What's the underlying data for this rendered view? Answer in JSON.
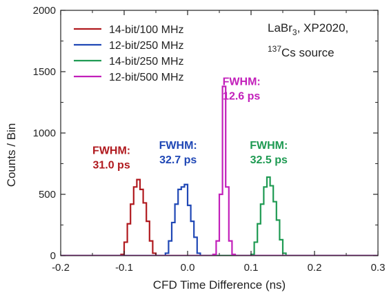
{
  "chart_data": {
    "type": "line",
    "title": "",
    "xlabel": "CFD Time Difference (ns)",
    "ylabel": "Counts / Bin",
    "xlim": [
      -0.2,
      0.3
    ],
    "ylim": [
      0,
      2000
    ],
    "x_ticks": [
      "-0.2",
      "-0.1",
      "0.0",
      "0.1",
      "0.2",
      "0.3"
    ],
    "y_ticks": [
      "0",
      "500",
      "1000",
      "1500",
      "2000"
    ],
    "grid": false,
    "legend_position": "top-left",
    "annotation": {
      "detector": "LaBr",
      "detector_sub": "3",
      "detector_rest": ", XP2020,",
      "isotope_mass": "137",
      "source_rest": "Cs source"
    },
    "series": [
      {
        "name": "14-bit/100 MHz",
        "color": "#b0191e",
        "fwhm_label": "FWHM:",
        "fwhm_value": "31.0 ps",
        "bin_edges": [
          -0.105,
          -0.1,
          -0.095,
          -0.09,
          -0.085,
          -0.08,
          -0.075,
          -0.07,
          -0.065,
          -0.06,
          -0.055,
          -0.05,
          -0.045,
          -0.04
        ],
        "values": [
          10,
          110,
          260,
          420,
          560,
          620,
          540,
          430,
          280,
          120,
          20,
          0,
          0
        ]
      },
      {
        "name": "12-bit/250 MHz",
        "color": "#1f47b5",
        "fwhm_label": "FWHM:",
        "fwhm_value": "32.7 ps",
        "bin_edges": [
          -0.035,
          -0.03,
          -0.025,
          -0.02,
          -0.015,
          -0.01,
          -0.005,
          0.0,
          0.005,
          0.01,
          0.015,
          0.02,
          0.025,
          0.03
        ],
        "values": [
          20,
          120,
          270,
          420,
          540,
          560,
          580,
          410,
          280,
          150,
          20,
          0,
          0
        ]
      },
      {
        "name": "14-bit/250 MHz",
        "color": "#1e9a52",
        "fwhm_label": "FWHM:",
        "fwhm_value": "32.5 ps",
        "bin_edges": [
          0.1,
          0.105,
          0.11,
          0.115,
          0.12,
          0.125,
          0.13,
          0.135,
          0.14,
          0.145,
          0.15,
          0.155,
          0.16,
          0.165,
          0.17,
          0.175
        ],
        "values": [
          10,
          110,
          260,
          420,
          560,
          640,
          570,
          440,
          290,
          130,
          20,
          0,
          0,
          0,
          0
        ]
      },
      {
        "name": "12-bit/500 MHz",
        "color": "#c21fba",
        "fwhm_label": "FWHM:",
        "fwhm_value": "12.6 ps",
        "bin_edges": [
          0.04,
          0.045,
          0.05,
          0.055,
          0.06,
          0.065,
          0.07,
          0.075,
          0.08,
          0.085
        ],
        "values": [
          10,
          120,
          500,
          1380,
          560,
          120,
          10,
          0,
          0
        ]
      }
    ]
  }
}
